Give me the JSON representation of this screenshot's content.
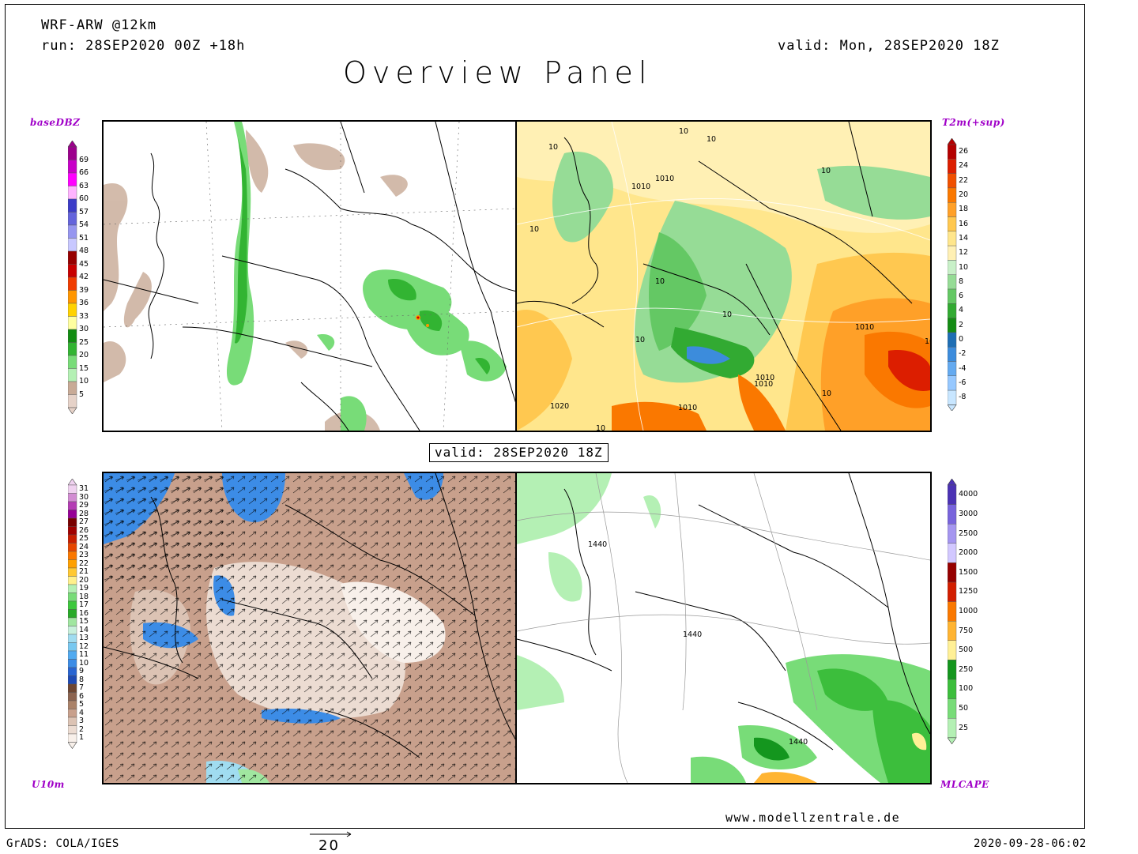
{
  "header": {
    "model": "WRF-ARW @12km",
    "run": "run: 28SEP2020 00Z +18h",
    "valid": "valid: Mon, 28SEP2020 18Z",
    "title": "Overview Panel"
  },
  "center_valid": "valid: 28SEP2020 18Z",
  "panels": {
    "top_left": {
      "label": "baseDBZ"
    },
    "top_right": {
      "label": "T2m(+sup)"
    },
    "bottom_left": {
      "label": "U10m"
    },
    "bottom_right": {
      "label": "MLCAPE"
    }
  },
  "contour_labels": {
    "top_right": [
      "10",
      "1010",
      "1010",
      "10",
      "10",
      "10",
      "1010",
      "10",
      "10",
      "1010",
      "1020",
      "10",
      "1010",
      "10",
      "1010",
      "10",
      "10",
      "10",
      "10"
    ],
    "bottom_right": [
      "1440",
      "1440",
      "1440"
    ]
  },
  "legends": {
    "dbz": {
      "ticks": [
        "69",
        "66",
        "63",
        "60",
        "57",
        "54",
        "51",
        "48",
        "45",
        "42",
        "39",
        "36",
        "33",
        "30",
        "25",
        "20",
        "15",
        "10",
        "5"
      ],
      "colors": [
        "#9c008c",
        "#c800c8",
        "#ff00ff",
        "#ffb4ff",
        "#3c3cc8",
        "#6464dc",
        "#9696f0",
        "#c8c8ff",
        "#960000",
        "#c80000",
        "#f03c00",
        "#ff9600",
        "#ffd200",
        "#ffffa0",
        "#128c12",
        "#32b432",
        "#78dc78",
        "#b4f0b4",
        "#c8aa96",
        "#e6d2c8"
      ]
    },
    "t2m": {
      "ticks": [
        "26",
        "24",
        "22",
        "20",
        "18",
        "16",
        "14",
        "12",
        "10",
        "8",
        "6",
        "4",
        "2",
        "0",
        "-2",
        "-4",
        "-6",
        "-8"
      ],
      "colors": [
        "#b40000",
        "#dc1e00",
        "#f05000",
        "#fa7800",
        "#ffa028",
        "#ffc850",
        "#ffe68c",
        "#fff0b4",
        "#c8f0c8",
        "#96dc96",
        "#64c864",
        "#32aa32",
        "#148c14",
        "#1e6eb4",
        "#3c8cdc",
        "#64aaf0",
        "#96c8ff",
        "#c8e6ff"
      ]
    },
    "u10m": {
      "ticks": [
        "31",
        "30",
        "29",
        "28",
        "27",
        "26",
        "25",
        "24",
        "23",
        "22",
        "21",
        "20",
        "19",
        "18",
        "17",
        "16",
        "15",
        "14",
        "13",
        "12",
        "11",
        "10",
        "9",
        "8",
        "7",
        "6",
        "5",
        "4",
        "3",
        "2",
        "1"
      ],
      "colors": [
        "#f0d2f0",
        "#d28cd2",
        "#b43cb4",
        "#960096",
        "#780000",
        "#a00000",
        "#c81e00",
        "#e64600",
        "#fa7800",
        "#ffa000",
        "#ffc832",
        "#fff08c",
        "#b4f0b4",
        "#78dc78",
        "#3cc83c",
        "#28aa28",
        "#a0e6a0",
        "#c8f0dc",
        "#a0dcf0",
        "#78c8f0",
        "#50aaf0",
        "#3c8ce6",
        "#2864d2",
        "#1e4ab4",
        "#6e4632",
        "#8c6450",
        "#aa8269",
        "#c8a08c",
        "#dcc3b4",
        "#ecdcd2",
        "#f8f0ea"
      ]
    },
    "mlcape": {
      "ticks": [
        "4000",
        "3000",
        "2500",
        "2000",
        "1500",
        "1250",
        "1000",
        "750",
        "500",
        "250",
        "100",
        "50",
        "25"
      ],
      "colors": [
        "#4b32b4",
        "#7864dc",
        "#a596f0",
        "#d2c8ff",
        "#960000",
        "#d21e00",
        "#fa7800",
        "#ffb432",
        "#fff096",
        "#14961e",
        "#3cbe3c",
        "#78dc78",
        "#b4f0b4"
      ]
    }
  },
  "vector_scale": "20",
  "footer": {
    "website": "www.modellzentrale.de",
    "grads": "GrADS: COLA/IGES",
    "timestamp": "2020-09-28-06:02"
  }
}
